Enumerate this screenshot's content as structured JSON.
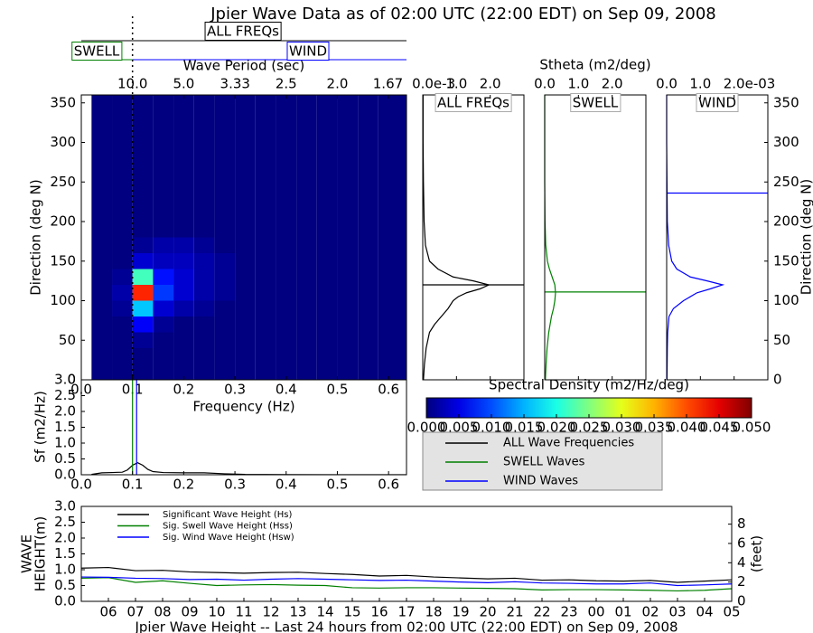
{
  "chart_data": [
    {
      "type": "heatmap",
      "title": "Jpier Wave Data as of 02:00 UTC (22:00 EDT) on Sep 09, 2008",
      "xlabel": "Frequency (Hz)",
      "ylabel": "Direction (deg N)",
      "x2label": "Wave Period (sec)",
      "xlim": [
        0,
        0.635
      ],
      "ylim": [
        0,
        360
      ],
      "xticks": [
        {
          "value": 0,
          "label": "0.0"
        },
        0.1,
        0.2,
        0.3,
        0.4,
        0.5,
        0.6
      ],
      "yticks": [
        0,
        50,
        100,
        150,
        200,
        250,
        300,
        350
      ],
      "x2ticks": [
        {
          "value": 10,
          "label": "10.0"
        },
        {
          "value": 5,
          "label": "5.0"
        },
        3.33,
        2.5,
        {
          "value": 2,
          "label": "2.0"
        },
        1.67
      ],
      "separation_frequency": 0.1,
      "annotations": [
        {
          "text": "ALL FREQs",
          "color": "#000000"
        },
        {
          "text": "SWELL",
          "color": "#008000"
        },
        {
          "text": "WIND",
          "color": "#0000ff"
        }
      ],
      "x": [
        0.04,
        0.08,
        0.12,
        0.16,
        0.2,
        0.24,
        0.28,
        0.32,
        0.36,
        0.4,
        0.44,
        0.48,
        0.52,
        0.56,
        0.6,
        0.64
      ],
      "y": [
        10,
        30,
        50,
        70,
        90,
        110,
        130,
        150,
        170,
        190,
        210,
        230,
        250,
        270,
        290,
        310,
        330,
        350
      ],
      "z": [
        [
          0,
          0,
          0,
          0,
          0,
          0,
          0,
          0,
          0,
          0,
          0,
          0,
          0,
          0,
          0,
          0
        ],
        [
          0,
          0,
          0,
          0,
          0,
          0,
          0,
          0,
          0,
          0,
          0,
          0,
          0,
          0,
          0,
          0
        ],
        [
          0,
          0,
          0.001,
          0,
          0,
          0,
          0,
          0,
          0,
          0,
          0,
          0,
          0,
          0,
          0,
          0
        ],
        [
          0,
          0,
          0.006,
          0.001,
          0,
          0,
          0,
          0,
          0,
          0,
          0,
          0,
          0,
          0,
          0,
          0
        ],
        [
          0,
          0.001,
          0.016,
          0.004,
          0.002,
          0.001,
          0,
          0,
          0,
          0,
          0,
          0,
          0,
          0,
          0,
          0
        ],
        [
          0,
          0.002,
          0.042,
          0.009,
          0.004,
          0.002,
          0.001,
          0,
          0,
          0,
          0,
          0,
          0,
          0,
          0,
          0
        ],
        [
          0,
          0.001,
          0.022,
          0.007,
          0.004,
          0.002,
          0.001,
          0,
          0,
          0,
          0,
          0,
          0,
          0,
          0,
          0
        ],
        [
          0,
          0,
          0.004,
          0.003,
          0.003,
          0.002,
          0.001,
          0,
          0,
          0,
          0,
          0,
          0,
          0,
          0,
          0
        ],
        [
          0,
          0,
          0.001,
          0.002,
          0.002,
          0.001,
          0,
          0,
          0,
          0,
          0,
          0,
          0,
          0,
          0,
          0
        ],
        [
          0,
          0,
          0,
          0,
          0,
          0,
          0,
          0,
          0,
          0,
          0,
          0,
          0,
          0,
          0,
          0
        ],
        [
          0,
          0,
          0,
          0,
          0,
          0,
          0,
          0,
          0,
          0,
          0,
          0,
          0,
          0,
          0,
          0
        ],
        [
          0,
          0,
          0,
          0,
          0,
          0,
          0,
          0,
          0,
          0,
          0,
          0,
          0,
          0,
          0,
          0
        ],
        [
          0,
          0,
          0,
          0,
          0,
          0,
          0,
          0,
          0,
          0,
          0,
          0,
          0,
          0,
          0,
          0
        ],
        [
          0,
          0,
          0,
          0,
          0,
          0,
          0,
          0,
          0,
          0,
          0,
          0,
          0,
          0,
          0,
          0
        ],
        [
          0,
          0,
          0,
          0,
          0,
          0,
          0,
          0,
          0,
          0,
          0,
          0,
          0,
          0,
          0,
          0
        ],
        [
          0,
          0,
          0,
          0,
          0,
          0,
          0,
          0,
          0,
          0,
          0,
          0,
          0,
          0,
          0,
          0
        ],
        [
          0,
          0,
          0,
          0,
          0,
          0,
          0,
          0,
          0,
          0,
          0,
          0,
          0,
          0,
          0,
          0
        ],
        [
          0,
          0,
          0,
          0,
          0,
          0,
          0,
          0,
          0,
          0,
          0,
          0,
          0,
          0,
          0,
          0
        ]
      ],
      "colorbar": {
        "label": "Spectral Density (m2/Hz/deg)",
        "lim": [
          0,
          0.05
        ],
        "ticks": [
          {
            "value": 0,
            "label": "0.000"
          },
          {
            "value": 0.005,
            "label": "0.005"
          },
          {
            "value": 0.01,
            "label": "0.010"
          },
          {
            "value": 0.015,
            "label": "0.015"
          },
          {
            "value": 0.02,
            "label": "0.020"
          },
          {
            "value": 0.025,
            "label": "0.025"
          },
          {
            "value": 0.03,
            "label": "0.030"
          },
          {
            "value": 0.035,
            "label": "0.035"
          },
          {
            "value": 0.04,
            "label": "0.040"
          },
          {
            "value": 0.045,
            "label": "0.045"
          },
          {
            "value": 0.05,
            "label": "0.050"
          }
        ]
      }
    },
    {
      "type": "line",
      "ylabel": "Sf (m2/Hz)",
      "xlim": [
        0,
        0.635
      ],
      "ylim": [
        0,
        3
      ],
      "xticks": [
        {
          "value": 0,
          "label": "0.0"
        },
        0.1,
        0.2,
        0.3,
        0.4,
        0.5,
        0.6
      ],
      "yticks": [
        {
          "value": 0,
          "label": "0.0"
        },
        0.5,
        {
          "value": 1,
          "label": "1.0"
        },
        1.5,
        {
          "value": 2,
          "label": "2.0"
        },
        2.5,
        {
          "value": 3,
          "label": "3.0"
        }
      ],
      "x": [
        0.02,
        0.04,
        0.06,
        0.08,
        0.09,
        0.1,
        0.11,
        0.12,
        0.13,
        0.14,
        0.16,
        0.2,
        0.24,
        0.28,
        0.32,
        0.4,
        0.5,
        0.635
      ],
      "series": [
        {
          "name": "ALL Wave Frequencies",
          "color": "#000000",
          "values": [
            0.01,
            0.06,
            0.07,
            0.08,
            0.15,
            0.3,
            0.38,
            0.3,
            0.17,
            0.1,
            0.07,
            0.06,
            0.06,
            0.03,
            0.01,
            0.005,
            0.002,
            0.001
          ]
        }
      ],
      "vlines": [
        {
          "name": "SWELL Waves",
          "color": "#008000",
          "x": 0.1
        },
        {
          "name": "WIND Waves",
          "color": "#0000ff",
          "x": 0.108
        }
      ]
    },
    {
      "type": "line",
      "orientation": "horizontal",
      "title": "ALL FREQs",
      "color": "#000000",
      "xlabel": "Stheta (m2/deg)",
      "x_offset_text": "e-3",
      "xlim": [
        0,
        3
      ],
      "ylim": [
        0,
        360
      ],
      "xticks": [
        {
          "value": 0,
          "label": "0.0"
        },
        {
          "value": 1,
          "label": "1.0"
        },
        {
          "value": 2,
          "label": "2.0"
        }
      ],
      "y": [
        0,
        20,
        40,
        60,
        70,
        80,
        90,
        100,
        105,
        110,
        115,
        120,
        125,
        130,
        140,
        150,
        170,
        200,
        250,
        300,
        360
      ],
      "values": [
        0.02,
        0.05,
        0.1,
        0.2,
        0.35,
        0.55,
        0.75,
        0.9,
        1.05,
        1.3,
        1.7,
        1.96,
        1.5,
        0.9,
        0.45,
        0.2,
        0.08,
        0.04,
        0.02,
        0.01,
        0.01
      ],
      "direction_line": 120
    },
    {
      "type": "line",
      "orientation": "horizontal",
      "title": "SWELL",
      "color": "#008000",
      "xlim": [
        0,
        3
      ],
      "ylim": [
        0,
        360
      ],
      "xticks": [
        {
          "value": 0,
          "label": "0.0"
        },
        {
          "value": 1,
          "label": "1.0"
        },
        {
          "value": 2,
          "label": "2.0"
        }
      ],
      "y": [
        0,
        20,
        40,
        60,
        80,
        90,
        100,
        110,
        120,
        130,
        140,
        150,
        170,
        200,
        250,
        300,
        360
      ],
      "values": [
        0.02,
        0.04,
        0.07,
        0.12,
        0.2,
        0.26,
        0.3,
        0.32,
        0.3,
        0.22,
        0.14,
        0.08,
        0.03,
        0.01,
        0,
        0,
        0
      ],
      "direction_line": 111
    },
    {
      "type": "line",
      "orientation": "horizontal",
      "title": "WIND",
      "color": "#0000ff",
      "ylabel": "Direction (deg N)",
      "x_offset_text": "e-03",
      "xlim": [
        0,
        3
      ],
      "ylim": [
        0,
        360
      ],
      "xticks": [
        {
          "value": 0,
          "label": "0.0"
        },
        {
          "value": 1,
          "label": "1.0"
        },
        {
          "value": 2,
          "label": "2.0"
        }
      ],
      "yticks": [
        0,
        50,
        100,
        150,
        200,
        250,
        300,
        350
      ],
      "y": [
        0,
        40,
        60,
        80,
        90,
        100,
        110,
        115,
        120,
        125,
        130,
        140,
        150,
        170,
        200,
        250,
        300,
        360
      ],
      "values": [
        0.01,
        0.02,
        0.03,
        0.07,
        0.2,
        0.5,
        0.9,
        1.3,
        1.66,
        1.2,
        0.7,
        0.3,
        0.15,
        0.06,
        0.02,
        0.01,
        0,
        0
      ],
      "direction_line": 236
    },
    {
      "type": "line",
      "xlabel": "Jpier Wave Height -- Last 24 hours from 02:00 UTC (22:00 EDT) on Sep 09, 2008",
      "ylabel": [
        "WAVE",
        "HEIGHT(m)"
      ],
      "y2label": "(feet)",
      "categories": [
        null,
        "06",
        "07",
        "08",
        "09",
        "10",
        "11",
        "12",
        "13",
        "14",
        "15",
        "16",
        "17",
        "18",
        "19",
        "20",
        "21",
        "22",
        "23",
        "00",
        "01",
        "02",
        "03",
        "04",
        "05"
      ],
      "ylim": [
        0,
        3
      ],
      "yticks": [
        {
          "value": 0,
          "label": "0.0"
        },
        0.5,
        {
          "value": 1,
          "label": "1.0"
        },
        1.5,
        {
          "value": 2,
          "label": "2.0"
        },
        2.5,
        {
          "value": 3,
          "label": "3.0"
        }
      ],
      "y2lim": [
        0,
        9.84
      ],
      "y2ticks": [
        0,
        2,
        4,
        6,
        8
      ],
      "series": [
        {
          "name": "Significant Wave Height (Hs)",
          "color": "#000000",
          "values": [
            1.05,
            1.07,
            0.97,
            0.98,
            0.93,
            0.91,
            0.89,
            0.91,
            0.92,
            0.88,
            0.85,
            0.8,
            0.82,
            0.77,
            0.74,
            0.71,
            0.73,
            0.67,
            0.68,
            0.65,
            0.64,
            0.66,
            0.6,
            0.64,
            0.68
          ]
        },
        {
          "name": "Sig. Swell Wave Height (Hss)",
          "color": "#008000",
          "values": [
            0.73,
            0.75,
            0.6,
            0.65,
            0.57,
            0.5,
            0.52,
            0.53,
            0.51,
            0.5,
            0.43,
            0.42,
            0.43,
            0.43,
            0.42,
            0.41,
            0.4,
            0.36,
            0.37,
            0.37,
            0.36,
            0.35,
            0.33,
            0.35,
            0.4
          ]
        },
        {
          "name": "Sig. Wind Wave Height (Hsw)",
          "color": "#0000ff",
          "values": [
            0.77,
            0.76,
            0.73,
            0.72,
            0.69,
            0.7,
            0.67,
            0.7,
            0.72,
            0.7,
            0.68,
            0.66,
            0.67,
            0.64,
            0.61,
            0.59,
            0.62,
            0.58,
            0.57,
            0.55,
            0.55,
            0.58,
            0.5,
            0.52,
            0.55
          ]
        }
      ]
    }
  ]
}
